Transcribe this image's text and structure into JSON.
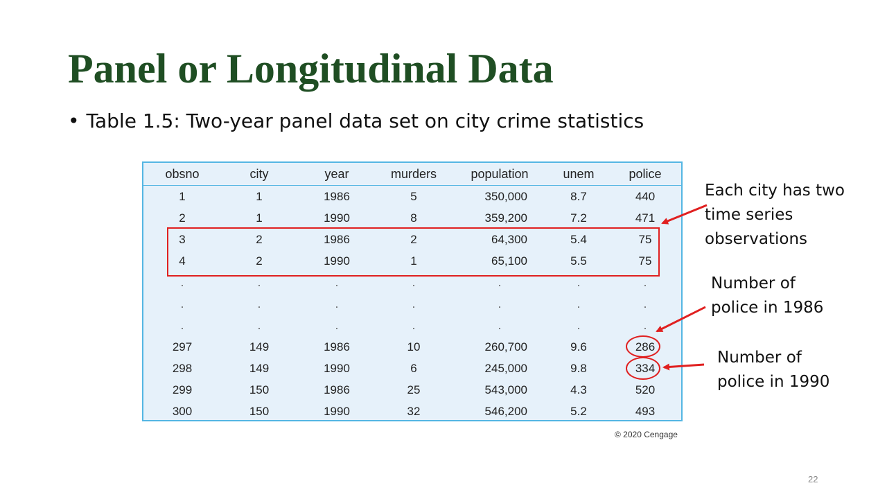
{
  "title": "Panel or Longitudinal Data",
  "bullet": "Table 1.5: Two-year panel data set on city crime statistics",
  "table": {
    "columns": [
      "obsno",
      "city",
      "year",
      "murders",
      "population",
      "unem",
      "police"
    ],
    "rows": [
      [
        "1",
        "1",
        "1986",
        "5",
        "350,000",
        "8.7",
        "440"
      ],
      [
        "2",
        "1",
        "1990",
        "8",
        "359,200",
        "7.2",
        "471"
      ],
      [
        "3",
        "2",
        "1986",
        "2",
        "64,300",
        "5.4",
        "75"
      ],
      [
        "4",
        "2",
        "1990",
        "1",
        "65,100",
        "5.5",
        "75"
      ],
      [
        ".",
        ".",
        ".",
        ".",
        ".",
        ".",
        "."
      ],
      [
        ".",
        ".",
        ".",
        ".",
        ".",
        ".",
        "."
      ],
      [
        ".",
        ".",
        ".",
        ".",
        ".",
        ".",
        "."
      ],
      [
        "297",
        "149",
        "1986",
        "10",
        "260,700",
        "9.6",
        "286"
      ],
      [
        "298",
        "149",
        "1990",
        "6",
        "245,000",
        "9.8",
        "334"
      ],
      [
        "299",
        "150",
        "1986",
        "25",
        "543,000",
        "4.3",
        "520"
      ],
      [
        "300",
        "150",
        "1990",
        "32",
        "546,200",
        "5.2",
        "493"
      ]
    ]
  },
  "annotations": {
    "city_two_obs": [
      "Each city has two",
      "time series",
      "observations"
    ],
    "police_1986": [
      "Number of",
      "police in 1986"
    ],
    "police_1990": [
      "Number of",
      "police in 1990"
    ]
  },
  "copyright": "© 2020 Cengage",
  "page_number": "22",
  "colors": {
    "title": "#1f4e23",
    "highlight": "#e02020",
    "table_border": "#54b6e3",
    "table_bg": "#e6f1fa"
  }
}
